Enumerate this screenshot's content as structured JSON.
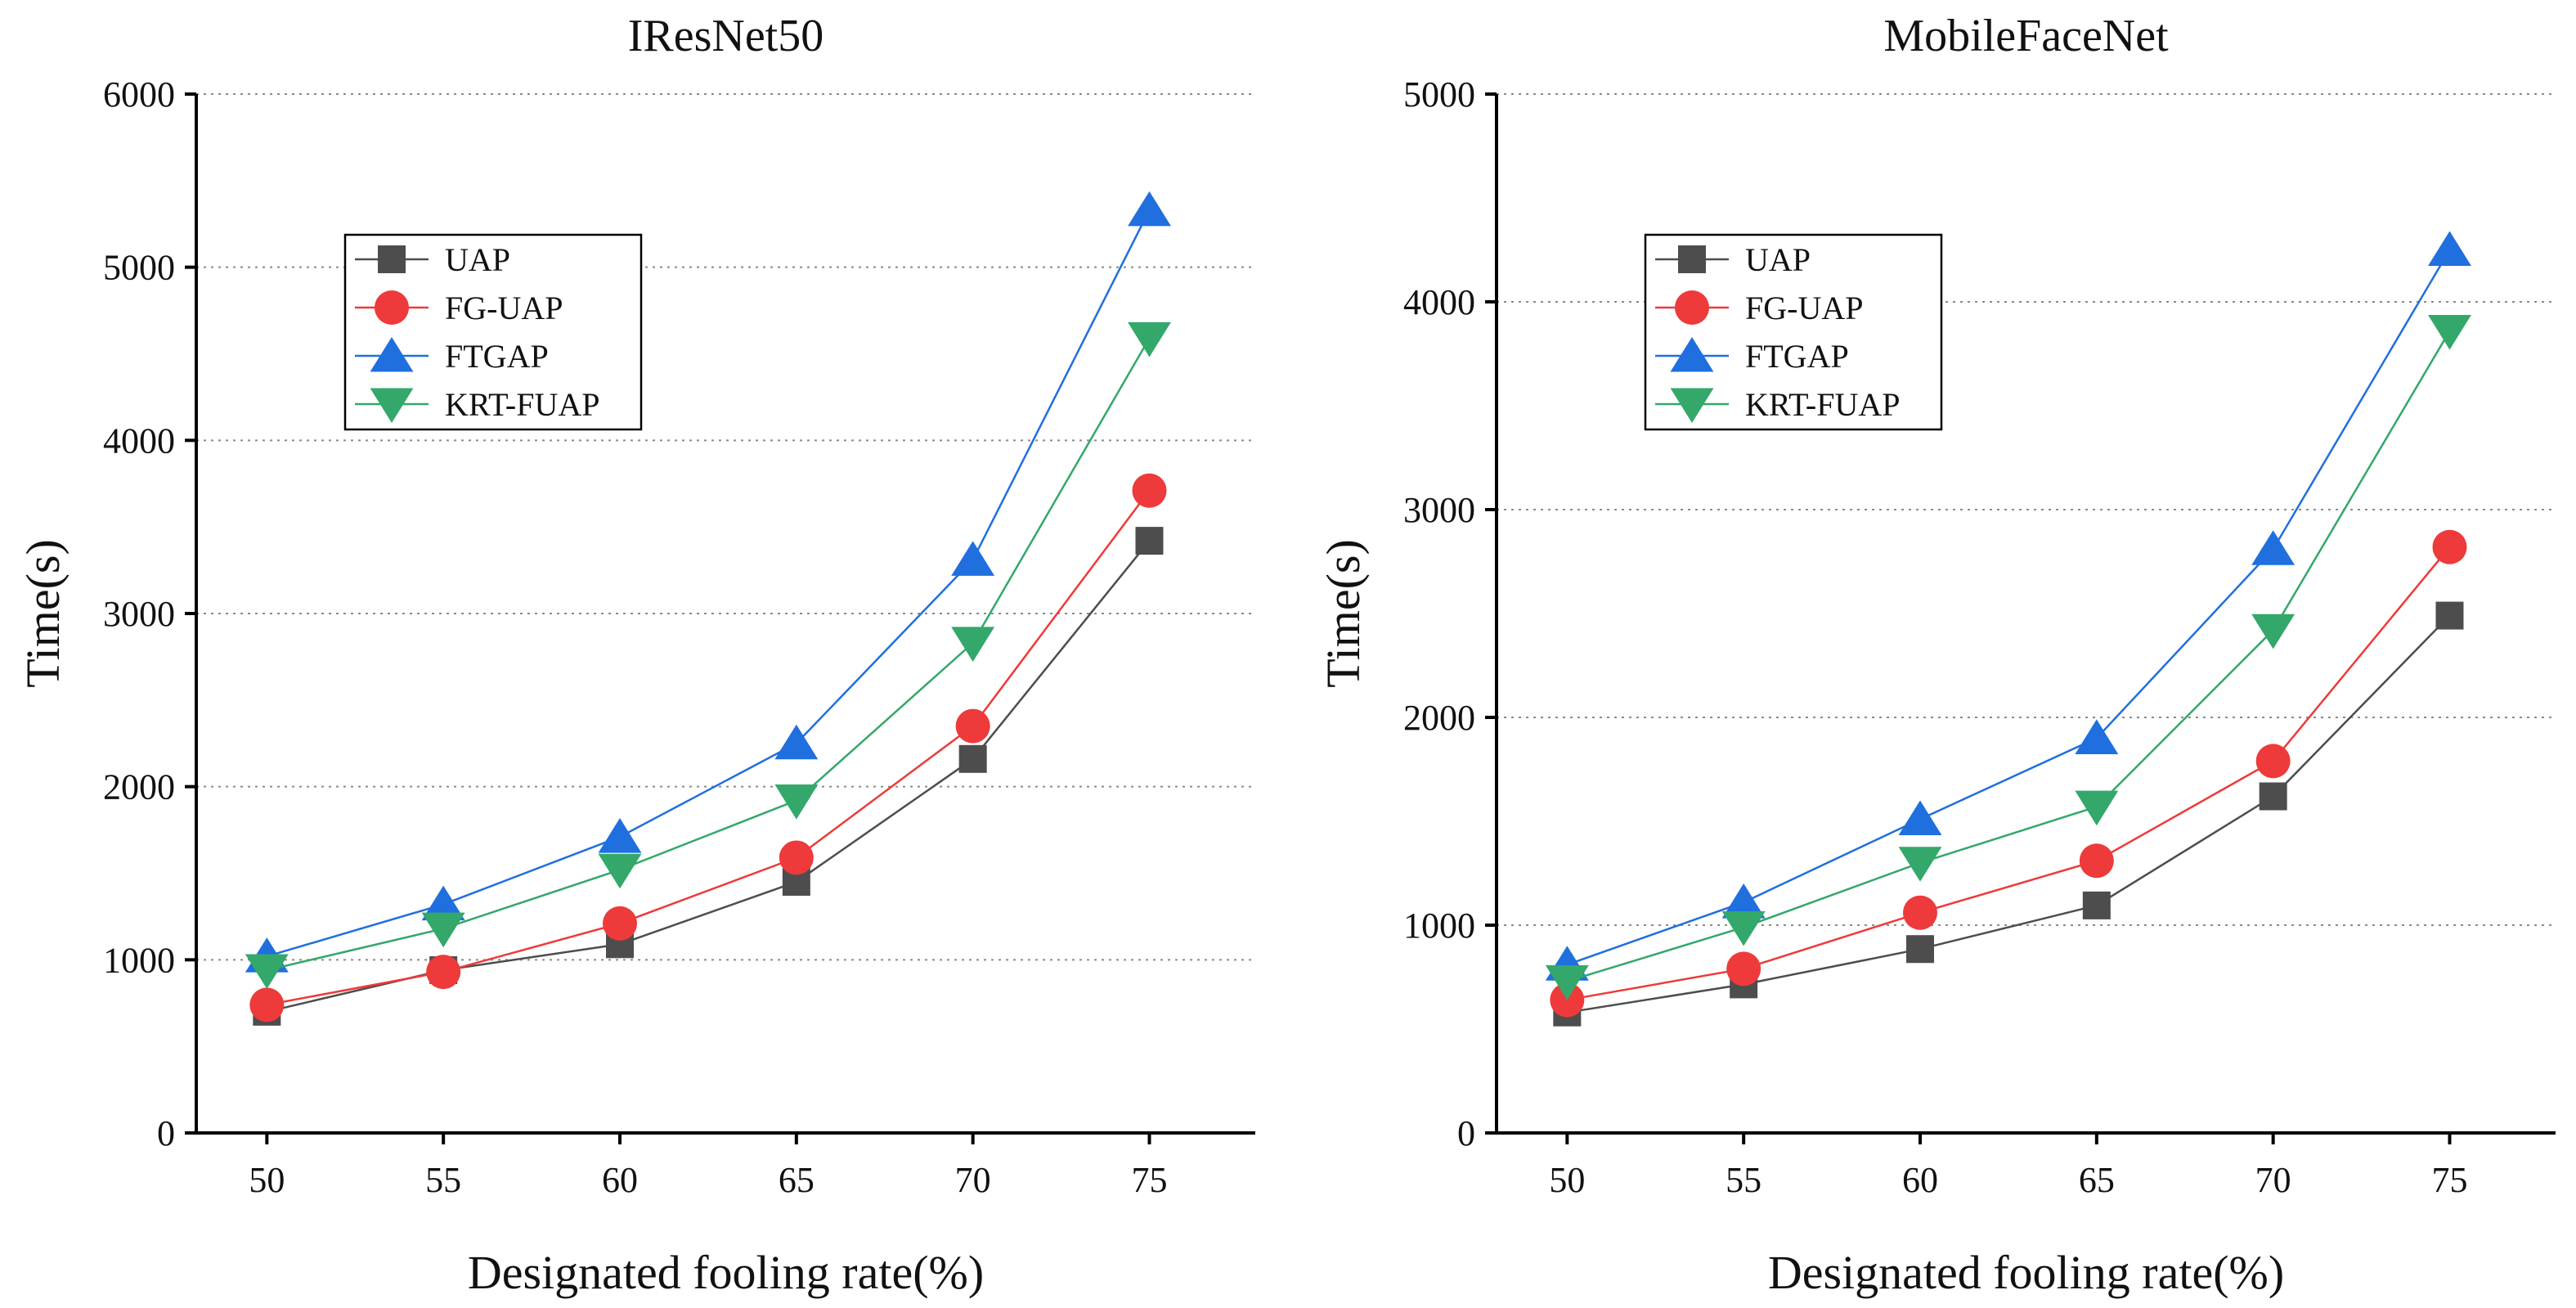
{
  "chart_data": [
    {
      "type": "line",
      "title": "IResNet50",
      "xlabel": "Designated fooling rate(%)",
      "ylabel": "Time(s)",
      "x": [
        50,
        55,
        60,
        65,
        70,
        75
      ],
      "x_tick_labels": [
        "50",
        "55",
        "60",
        "65",
        "70",
        "75"
      ],
      "xlim": [
        48,
        78
      ],
      "ylim": [
        0,
        6000
      ],
      "y_ticks": [
        0,
        1000,
        2000,
        3000,
        4000,
        5000,
        6000
      ],
      "y_tick_labels": [
        "0",
        "1000",
        "2000",
        "3000",
        "4000",
        "5000",
        "6000"
      ],
      "grid": "horizontal-dotted",
      "legend_position": "upper-left",
      "series": [
        {
          "name": "UAP",
          "marker": "square",
          "color": "#4d4d4d",
          "values": [
            700,
            940,
            1090,
            1450,
            2160,
            3420
          ]
        },
        {
          "name": "FG-UAP",
          "marker": "circle",
          "color": "#ee3a3a",
          "values": [
            740,
            930,
            1210,
            1590,
            2350,
            3710
          ]
        },
        {
          "name": "FTGAP",
          "marker": "triangle-up",
          "color": "#1f6fde",
          "values": [
            1020,
            1320,
            1710,
            2250,
            3310,
            5330
          ]
        },
        {
          "name": "KRT-FUAP",
          "marker": "triangle-down",
          "color": "#33a86a",
          "values": [
            940,
            1180,
            1520,
            1920,
            2830,
            4590
          ]
        }
      ]
    },
    {
      "type": "line",
      "title": "MobileFaceNet",
      "xlabel": "Designated fooling rate(%)",
      "ylabel": "Time(s)",
      "x": [
        50,
        55,
        60,
        65,
        70,
        75
      ],
      "x_tick_labels": [
        "50",
        "55",
        "60",
        "65",
        "70",
        "75"
      ],
      "xlim": [
        48,
        78
      ],
      "ylim": [
        0,
        5000
      ],
      "y_ticks": [
        0,
        1000,
        2000,
        3000,
        4000,
        5000
      ],
      "y_tick_labels": [
        "0",
        "1000",
        "2000",
        "3000",
        "4000",
        "5000"
      ],
      "grid": "horizontal-dotted",
      "legend_position": "upper-left",
      "series": [
        {
          "name": "UAP",
          "marker": "square",
          "color": "#4d4d4d",
          "values": [
            580,
            715,
            885,
            1095,
            1620,
            2490
          ]
        },
        {
          "name": "FG-UAP",
          "marker": "circle",
          "color": "#ee3a3a",
          "values": [
            640,
            790,
            1060,
            1310,
            1790,
            2820
          ]
        },
        {
          "name": "FTGAP",
          "marker": "triangle-up",
          "color": "#1f6fde",
          "values": [
            810,
            1110,
            1510,
            1900,
            2810,
            4250
          ]
        },
        {
          "name": "KRT-FUAP",
          "marker": "triangle-down",
          "color": "#33a86a",
          "values": [
            730,
            990,
            1300,
            1570,
            2420,
            3860
          ]
        }
      ]
    }
  ]
}
